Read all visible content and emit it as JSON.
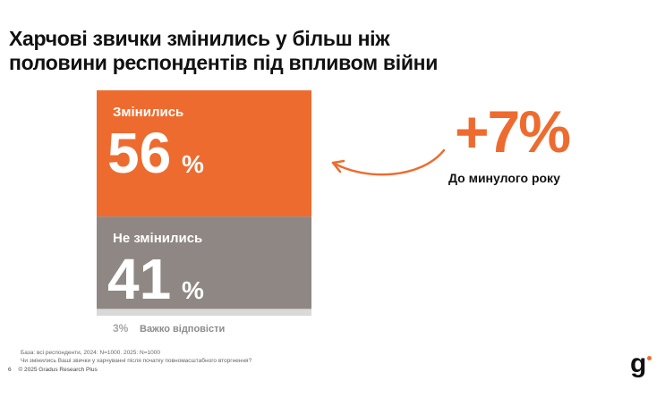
{
  "slide": {
    "title_line1": "Харчові звички змінились у більш ніж",
    "title_line2": "половини респондентів під впливом війни",
    "change_value": "+7%",
    "change_caption": "До минулого року",
    "base_note_line1": "База: всі респонденти, 2024: N=1000. 2025: N=1000",
    "base_note_line2": "Чи змінились Ваші звички у харчуванні після початку повномасштабного вторгнення?",
    "page_number": "6",
    "copyright": "© 2025 Gradus Research Plus",
    "logo_text": "g"
  },
  "colors": {
    "changed": "#ee6b2f",
    "not_changed": "#8f8783",
    "hard_to_answer": "#d9d9d9",
    "accent": "#ee6b2f"
  },
  "chart_data": {
    "type": "bar",
    "stacked": true,
    "unit": "%",
    "segments": [
      {
        "label": "Змінились",
        "value": 56,
        "display": "56",
        "color": "#ee6b2f"
      },
      {
        "label": "Не змінились",
        "value": 41,
        "display": "41",
        "color": "#8f8783"
      },
      {
        "label": "Важко відповісти",
        "value": 3,
        "display": "3%",
        "color": "#d9d9d9"
      }
    ]
  }
}
